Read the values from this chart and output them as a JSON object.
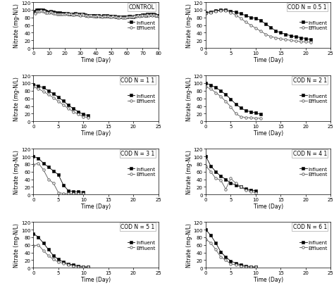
{
  "panels": [
    {
      "label": "CONTROL",
      "xlim": [
        0,
        80
      ],
      "xticks": [
        0,
        10,
        20,
        30,
        40,
        50,
        60,
        70,
        80
      ],
      "influent_x": [
        1,
        2,
        3,
        4,
        5,
        6,
        7,
        8,
        9,
        10,
        11,
        12,
        13,
        14,
        15,
        16,
        17,
        18,
        19,
        20,
        21,
        22,
        23,
        24,
        25,
        26,
        27,
        28,
        29,
        30,
        31,
        32,
        33,
        34,
        35,
        36,
        37,
        38,
        39,
        40,
        41,
        42,
        43,
        44,
        45,
        46,
        47,
        48,
        49,
        50,
        51,
        52,
        53,
        54,
        55,
        56,
        57,
        58,
        59,
        60,
        61,
        62,
        63,
        64,
        65,
        66,
        67,
        68,
        69,
        70,
        71,
        72,
        73,
        74,
        75,
        76,
        77,
        78,
        79,
        80
      ],
      "influent_y": [
        97,
        100,
        100,
        99,
        100,
        99,
        98,
        96,
        95,
        95,
        96,
        95,
        94,
        93,
        92,
        91,
        92,
        91,
        90,
        90,
        91,
        90,
        89,
        89,
        88,
        88,
        90,
        89,
        88,
        87,
        89,
        88,
        87,
        86,
        85,
        86,
        86,
        85,
        85,
        84,
        86,
        85,
        84,
        83,
        85,
        84,
        85,
        84,
        83,
        83,
        84,
        83,
        82,
        81,
        81,
        82,
        81,
        81,
        81,
        82,
        83,
        83,
        82,
        82,
        84,
        85,
        86,
        85,
        86,
        87,
        87,
        86,
        88,
        87,
        88,
        87,
        88,
        87,
        86,
        85
      ],
      "effluent_x": [
        1,
        2,
        3,
        4,
        5,
        6,
        7,
        8,
        9,
        10,
        11,
        12,
        13,
        14,
        15,
        16,
        17,
        18,
        19,
        20,
        21,
        22,
        23,
        24,
        25,
        26,
        27,
        28,
        29,
        30,
        31,
        32,
        33,
        34,
        35,
        36,
        37,
        38,
        39,
        40,
        41,
        42,
        43,
        44,
        45,
        46,
        47,
        48,
        49,
        50,
        51,
        52,
        53,
        54,
        55,
        56,
        57,
        58,
        59,
        60,
        61,
        62,
        63,
        64,
        65,
        66,
        67,
        68,
        69,
        70,
        71,
        72,
        73,
        74,
        75,
        76,
        77,
        78,
        79,
        80
      ],
      "effluent_y": [
        90,
        96,
        97,
        97,
        98,
        97,
        96,
        93,
        92,
        92,
        94,
        93,
        91,
        90,
        89,
        88,
        89,
        89,
        88,
        88,
        90,
        89,
        88,
        88,
        87,
        87,
        89,
        88,
        87,
        86,
        88,
        87,
        86,
        85,
        84,
        85,
        85,
        84,
        84,
        83,
        85,
        84,
        83,
        82,
        84,
        83,
        84,
        83,
        82,
        82,
        83,
        82,
        81,
        80,
        80,
        81,
        80,
        80,
        80,
        81,
        82,
        82,
        81,
        81,
        83,
        84,
        85,
        84,
        85,
        86,
        86,
        85,
        87,
        86,
        87,
        86,
        87,
        86,
        85,
        84
      ]
    },
    {
      "label": "COD N = 0.5 1",
      "xlim": [
        0,
        25
      ],
      "xticks": [
        0,
        5,
        10,
        15,
        20,
        25
      ],
      "influent_x": [
        0,
        1,
        2,
        3,
        4,
        5,
        6,
        7,
        8,
        9,
        10,
        11,
        12,
        13,
        14,
        15,
        16,
        17,
        18,
        19,
        20,
        21
      ],
      "influent_y": [
        93,
        95,
        98,
        100,
        100,
        97,
        94,
        90,
        85,
        80,
        78,
        72,
        63,
        54,
        45,
        40,
        36,
        32,
        30,
        27,
        25,
        22
      ],
      "effluent_x": [
        0,
        1,
        2,
        3,
        4,
        5,
        6,
        7,
        8,
        9,
        10,
        11,
        12,
        13,
        14,
        15,
        16,
        17,
        18,
        19,
        20,
        21
      ],
      "effluent_y": [
        90,
        93,
        96,
        98,
        98,
        93,
        86,
        78,
        68,
        60,
        52,
        44,
        36,
        30,
        27,
        24,
        22,
        20,
        18,
        17,
        16,
        15
      ]
    },
    {
      "label": "COD N = 1 1",
      "xlim": [
        0,
        25
      ],
      "xticks": [
        0,
        5,
        10,
        15,
        20,
        25
      ],
      "influent_x": [
        0,
        1,
        2,
        3,
        4,
        5,
        6,
        7,
        8,
        9,
        10,
        11
      ],
      "influent_y": [
        97,
        92,
        88,
        80,
        72,
        63,
        53,
        42,
        33,
        25,
        18,
        15
      ],
      "effluent_x": [
        0,
        1,
        2,
        3,
        4,
        5,
        6,
        7,
        8,
        9,
        10,
        11
      ],
      "effluent_y": [
        90,
        85,
        78,
        70,
        62,
        52,
        43,
        33,
        25,
        18,
        12,
        10
      ]
    },
    {
      "label": "COD N = 2 1",
      "xlim": [
        0,
        25
      ],
      "xticks": [
        0,
        5,
        10,
        15,
        20,
        25
      ],
      "influent_x": [
        0,
        1,
        2,
        3,
        4,
        5,
        6,
        7,
        8,
        9,
        10,
        11
      ],
      "influent_y": [
        100,
        95,
        88,
        80,
        70,
        58,
        45,
        35,
        28,
        25,
        22,
        18
      ],
      "effluent_x": [
        0,
        1,
        2,
        3,
        4,
        5,
        6,
        7,
        8,
        9,
        10,
        11
      ],
      "effluent_y": [
        90,
        85,
        75,
        65,
        52,
        38,
        20,
        12,
        10,
        9,
        8,
        8
      ]
    },
    {
      "label": "COD N = 3 1",
      "xlim": [
        0,
        25
      ],
      "xticks": [
        0,
        5,
        10,
        15,
        20,
        25
      ],
      "influent_x": [
        0,
        1,
        2,
        3,
        4,
        5,
        6,
        7,
        8,
        9,
        10
      ],
      "influent_y": [
        100,
        95,
        82,
        72,
        62,
        52,
        25,
        10,
        8,
        7,
        6
      ],
      "effluent_x": [
        0,
        1,
        2,
        3,
        4,
        5,
        6,
        7,
        8,
        9,
        10
      ],
      "effluent_y": [
        78,
        82,
        65,
        40,
        30,
        5,
        3,
        2,
        2,
        2,
        2
      ]
    },
    {
      "label": "COD N = 4 1",
      "xlim": [
        0,
        25
      ],
      "xticks": [
        0,
        5,
        10,
        15,
        20,
        25
      ],
      "influent_x": [
        0,
        1,
        2,
        3,
        4,
        5,
        6,
        7,
        8,
        9,
        10
      ],
      "influent_y": [
        100,
        75,
        60,
        48,
        40,
        30,
        25,
        20,
        15,
        12,
        10
      ],
      "effluent_x": [
        0,
        1,
        2,
        3,
        4,
        5,
        6,
        7,
        8,
        9,
        10
      ],
      "effluent_y": [
        75,
        60,
        42,
        38,
        14,
        42,
        30,
        20,
        12,
        8,
        5
      ]
    },
    {
      "label": "COD N = 5 1",
      "xlim": [
        0,
        25
      ],
      "xticks": [
        0,
        5,
        10,
        15,
        20,
        25
      ],
      "influent_x": [
        0,
        1,
        2,
        3,
        4,
        5,
        6,
        7,
        8,
        9,
        10,
        11
      ],
      "influent_y": [
        90,
        80,
        65,
        48,
        32,
        22,
        15,
        10,
        8,
        5,
        3,
        2
      ],
      "effluent_x": [
        0,
        1,
        2,
        3,
        4,
        5,
        6,
        7,
        8,
        9,
        10,
        11
      ],
      "effluent_y": [
        58,
        60,
        45,
        32,
        22,
        15,
        12,
        8,
        5,
        3,
        2,
        2
      ]
    },
    {
      "label": "COD N = 6 1",
      "xlim": [
        0,
        25
      ],
      "xticks": [
        0,
        5,
        10,
        15,
        20,
        25
      ],
      "influent_x": [
        0,
        1,
        2,
        3,
        4,
        5,
        6,
        7,
        8,
        9,
        10
      ],
      "influent_y": [
        100,
        85,
        65,
        42,
        28,
        18,
        12,
        8,
        5,
        3,
        2
      ],
      "effluent_x": [
        0,
        1,
        2,
        3,
        4,
        5,
        6,
        7,
        8,
        9,
        10
      ],
      "effluent_y": [
        75,
        65,
        48,
        28,
        20,
        10,
        8,
        5,
        3,
        2,
        2
      ]
    }
  ],
  "ylim": [
    0,
    120
  ],
  "yticks": [
    0,
    20,
    40,
    60,
    80,
    100,
    120
  ],
  "ylabel": "Nitrate (mg-N/L)",
  "xlabel": "Time (Day)",
  "influent_color": "#000000",
  "effluent_color": "#555555",
  "influent_marker": "s",
  "effluent_marker": "o",
  "legend_labels": [
    "Influent",
    "Effluent"
  ],
  "fontsize_label": 5.5,
  "fontsize_tick": 5,
  "fontsize_legend": 5,
  "fontsize_panel_label": 5.5
}
